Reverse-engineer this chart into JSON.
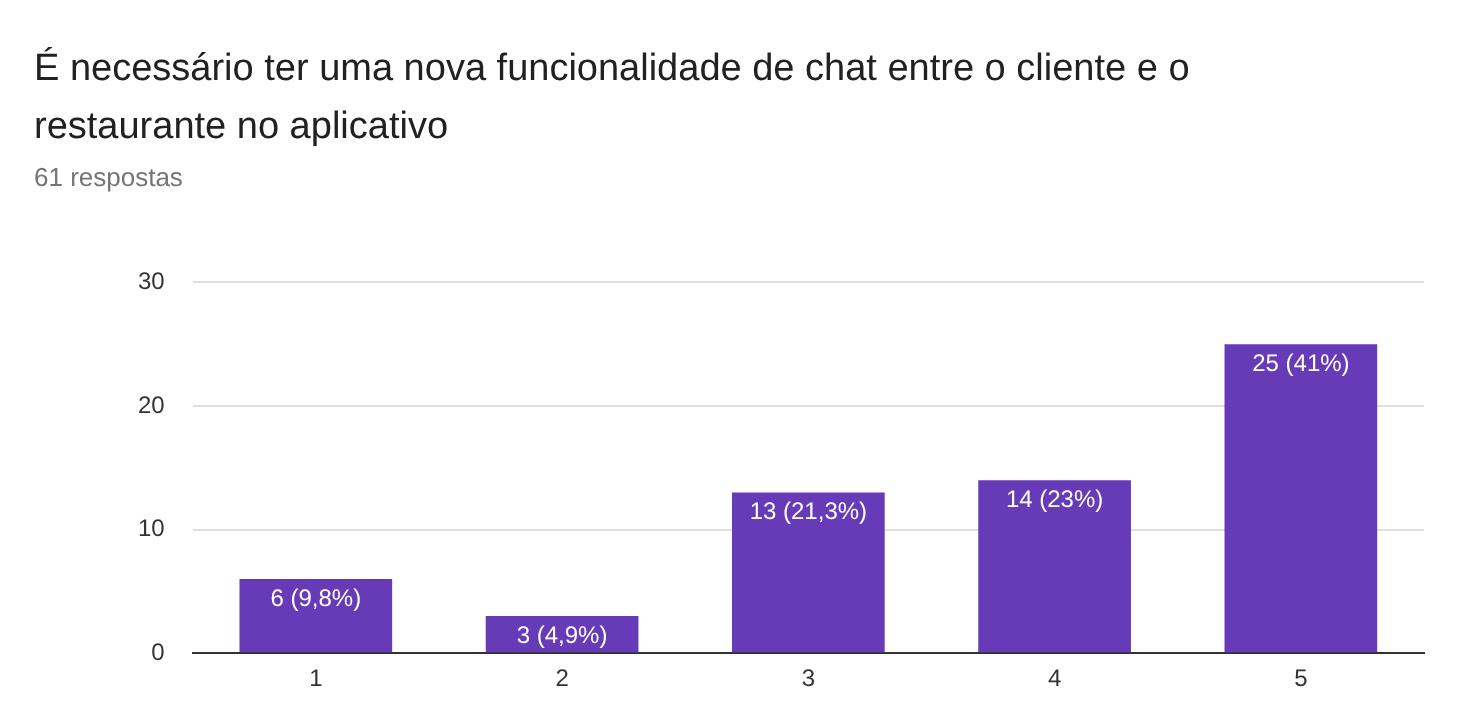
{
  "chart_data": {
    "type": "bar",
    "title": "É necessário ter uma nova funcionalidade de chat entre o cliente e o restaurante no aplicativo",
    "subtitle": "61 respostas",
    "categories": [
      "1",
      "2",
      "3",
      "4",
      "5"
    ],
    "values": [
      6,
      3,
      13,
      14,
      25
    ],
    "color": "#673ab7",
    "value_labels": [
      "6 (9,8%)",
      "3 (4,9%)",
      "13 (21,3%)",
      "14 (23%)",
      "25 (41%)"
    ],
    "ylim": [
      0,
      30
    ],
    "yticks": [
      0,
      10,
      20,
      30
    ],
    "grid": "y"
  }
}
